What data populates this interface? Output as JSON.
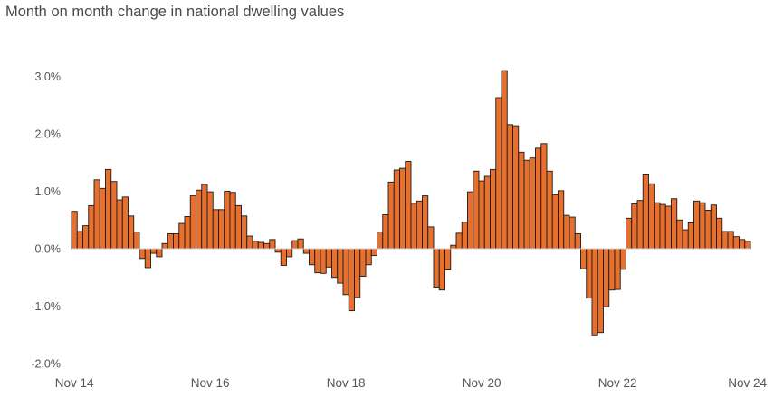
{
  "chart_data": {
    "type": "bar",
    "title": "Month on month change in national dwelling values",
    "xlabel": "",
    "ylabel": "",
    "ylim": [
      -2.0,
      3.1
    ],
    "y_ticks": [
      {
        "value": 3.0,
        "label": "3.0%"
      },
      {
        "value": 2.0,
        "label": "2.0%"
      },
      {
        "value": 1.0,
        "label": "1.0%"
      },
      {
        "value": 0.0,
        "label": "0.0%"
      },
      {
        "value": -1.0,
        "label": "-1.0%"
      },
      {
        "value": -2.0,
        "label": "-2.0%"
      }
    ],
    "x_ticks": [
      {
        "index": 0,
        "label": "Nov 14"
      },
      {
        "index": 24,
        "label": "Nov 16"
      },
      {
        "index": 48,
        "label": "Nov 18"
      },
      {
        "index": 72,
        "label": "Nov 20"
      },
      {
        "index": 96,
        "label": "Nov 22"
      },
      {
        "index": 120,
        "label": "Nov 24"
      }
    ],
    "grid": false,
    "bar_color": "#E8702F",
    "bar_edge_color": "#1a1a1a",
    "values": [
      0.65,
      0.3,
      0.4,
      0.75,
      1.2,
      1.05,
      1.38,
      1.17,
      0.85,
      0.9,
      0.57,
      0.29,
      -0.17,
      -0.33,
      -0.08,
      -0.14,
      0.09,
      0.26,
      0.26,
      0.44,
      0.56,
      0.92,
      1.02,
      1.12,
      0.99,
      0.68,
      0.68,
      1.0,
      0.98,
      0.75,
      0.57,
      0.22,
      0.13,
      0.11,
      0.09,
      0.16,
      -0.06,
      -0.29,
      -0.14,
      0.14,
      0.17,
      -0.08,
      -0.28,
      -0.42,
      -0.43,
      -0.32,
      -0.5,
      -0.6,
      -0.8,
      -1.08,
      -0.85,
      -0.48,
      -0.28,
      -0.12,
      0.29,
      0.59,
      1.16,
      1.37,
      1.4,
      1.52,
      0.79,
      0.83,
      0.92,
      0.38,
      -0.67,
      -0.72,
      -0.37,
      0.06,
      0.27,
      0.46,
      0.99,
      1.35,
      1.18,
      1.26,
      1.38,
      2.63,
      3.1,
      2.16,
      2.14,
      1.68,
      1.54,
      1.58,
      1.75,
      1.83,
      1.35,
      0.94,
      1.01,
      0.58,
      0.55,
      0.26,
      -0.35,
      -0.86,
      -1.5,
      -1.46,
      -1.01,
      -0.72,
      -0.71,
      -0.36,
      0.53,
      0.78,
      0.84,
      1.3,
      1.13,
      0.8,
      0.77,
      0.74,
      0.87,
      0.5,
      0.33,
      0.45,
      0.83,
      0.8,
      0.67,
      0.76,
      0.53,
      0.3,
      0.3,
      0.21,
      0.16,
      0.13
    ]
  }
}
